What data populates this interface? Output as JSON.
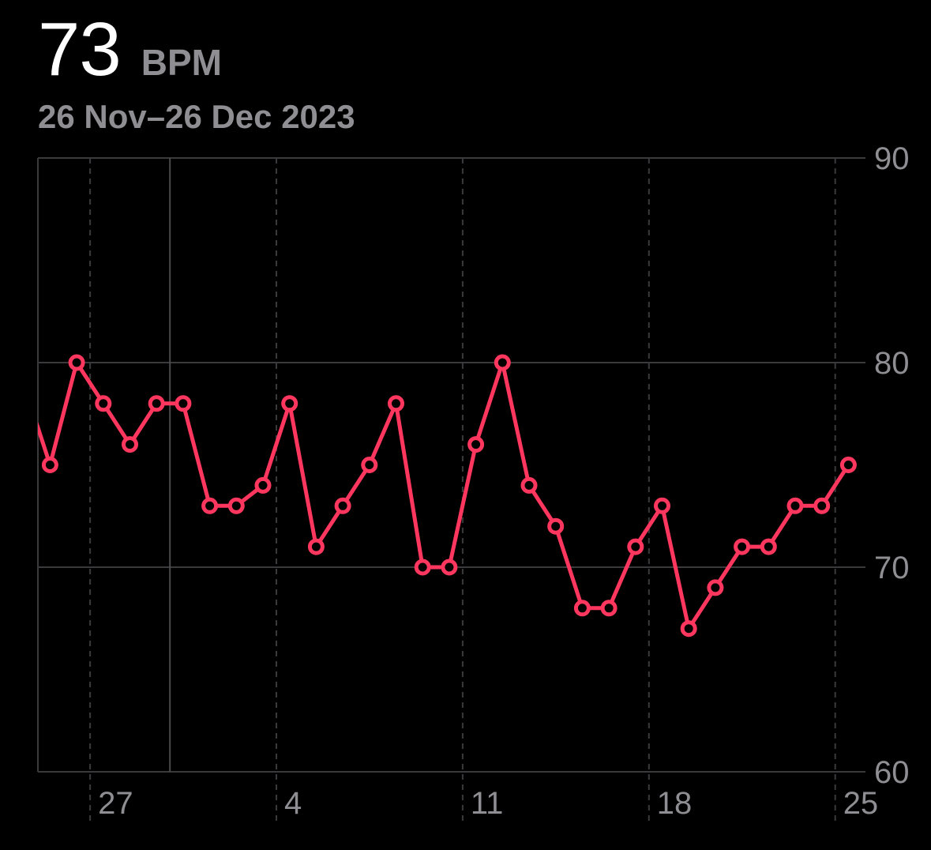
{
  "header": {
    "value": "73",
    "unit": "BPM",
    "date_range": "26 Nov–26 Dec 2023"
  },
  "colors": {
    "background": "#000000",
    "line": "#ff375f",
    "grid": "#3a3a3c",
    "label": "#8e8e93"
  },
  "chart_data": {
    "type": "line",
    "title": "",
    "xlabel": "",
    "ylabel": "",
    "ylim": [
      60,
      90
    ],
    "y_ticks": [
      90,
      80,
      70,
      60
    ],
    "y_tick_labels": [
      "90",
      "80",
      "70",
      "60"
    ],
    "x_tick_labels": [
      "27",
      "4",
      "11",
      "18",
      "25"
    ],
    "x_tick_days": [
      27,
      34,
      41,
      48,
      55
    ],
    "x_range_days": [
      25.5,
      56.2
    ],
    "grid": true,
    "selected_day": 30,
    "series": [
      {
        "color": "#ff375f",
        "x_days": [
          25.5,
          26,
          27,
          28,
          29,
          30,
          31,
          32,
          33,
          34,
          35,
          36,
          37,
          38,
          39,
          40,
          41,
          42,
          43,
          44,
          45,
          46,
          47,
          48,
          49,
          50,
          51,
          52,
          53,
          54,
          55,
          56
        ],
        "markers_from_index": 1,
        "values": [
          77,
          75,
          80,
          78,
          76,
          78,
          78,
          73,
          73,
          74,
          78,
          71,
          73,
          75,
          78,
          70,
          70,
          76,
          80,
          74,
          72,
          68,
          68,
          71,
          73,
          67,
          69,
          71,
          71,
          73,
          73,
          75
        ]
      }
    ]
  }
}
